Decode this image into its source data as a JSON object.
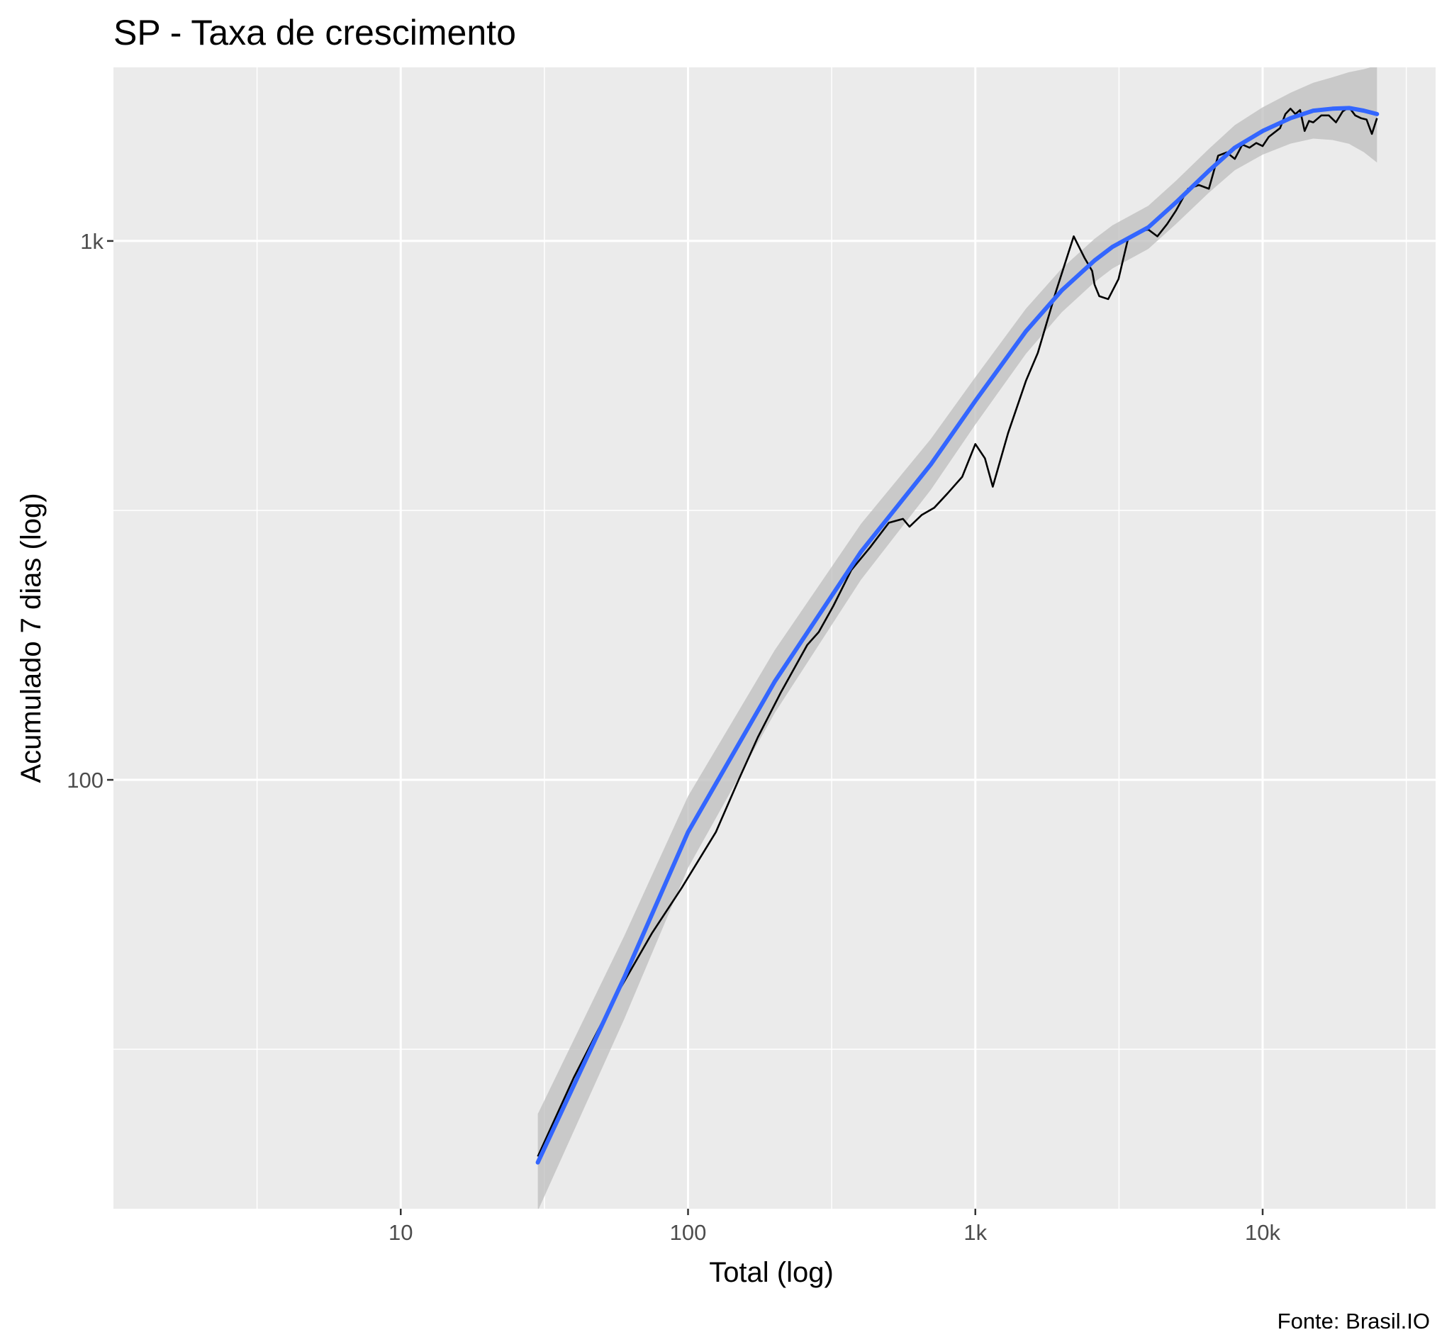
{
  "chart_data": {
    "type": "line",
    "title": "SP - Taxa de crescimento",
    "xlabel": "Total (log)",
    "ylabel": "Acumulado 7 dias (log)",
    "caption": "Fonte: Brasil.IO",
    "x_scale": "log10",
    "y_scale": "log10",
    "xlim": [
      1,
      40000
    ],
    "ylim": [
      16,
      2100
    ],
    "x_ticks": [
      {
        "value": 10,
        "label": "10"
      },
      {
        "value": 100,
        "label": "100"
      },
      {
        "value": 1000,
        "label": "1k"
      },
      {
        "value": 10000,
        "label": "10k"
      }
    ],
    "y_ticks": [
      {
        "value": 100,
        "label": "100"
      },
      {
        "value": 1000,
        "label": "1k"
      }
    ],
    "grid": true,
    "legend": "none",
    "colors": {
      "panel_background": "#ebebeb",
      "grid": "#ffffff",
      "observed_line": "#000000",
      "smooth_line": "#3366ff",
      "confidence_band": "#bdbdbd"
    },
    "series": [
      {
        "role": "observed",
        "x": [
          30,
          40,
          55,
          75,
          95,
          125,
          150,
          175,
          210,
          260,
          285,
          320,
          370,
          430,
          500,
          560,
          590,
          650,
          720,
          800,
          900,
          1000,
          1080,
          1150,
          1300,
          1500,
          1650,
          1900,
          2200,
          2400,
          2550,
          2600,
          2700,
          2900,
          3150,
          3400,
          3700,
          4000,
          4300,
          4650,
          5000,
          5500,
          6000,
          6500,
          7000,
          7500,
          8000,
          8500,
          9000,
          9500,
          10000,
          10500,
          11500,
          12000,
          12500,
          13000,
          13500,
          14000,
          14500,
          15000,
          16000,
          17000,
          18000,
          19000,
          20000,
          21000,
          22000,
          23000,
          24000,
          25000
        ],
        "y": [
          20,
          28,
          39,
          52,
          63,
          80,
          100,
          120,
          145,
          178,
          188,
          210,
          245,
          270,
          300,
          305,
          295,
          310,
          320,
          340,
          365,
          420,
          395,
          350,
          440,
          550,
          620,
          800,
          1020,
          930,
          880,
          830,
          790,
          780,
          850,
          1010,
          1040,
          1050,
          1020,
          1075,
          1140,
          1250,
          1270,
          1250,
          1440,
          1460,
          1420,
          1510,
          1490,
          1520,
          1500,
          1560,
          1620,
          1720,
          1760,
          1720,
          1750,
          1600,
          1670,
          1660,
          1710,
          1710,
          1660,
          1740,
          1770,
          1710,
          1690,
          1680,
          1580,
          1690
        ]
      },
      {
        "role": "smooth",
        "x": [
          30,
          60,
          100,
          200,
          400,
          700,
          1000,
          1500,
          2000,
          2600,
          3000,
          4000,
          5000,
          6500,
          8000,
          10000,
          12500,
          15000,
          17500,
          20000,
          22500,
          25000
        ],
        "y": [
          19.5,
          43,
          80,
          152,
          265,
          385,
          505,
          680,
          810,
          920,
          975,
          1060,
          1180,
          1350,
          1490,
          1600,
          1690,
          1745,
          1760,
          1765,
          1745,
          1720
        ]
      }
    ]
  }
}
